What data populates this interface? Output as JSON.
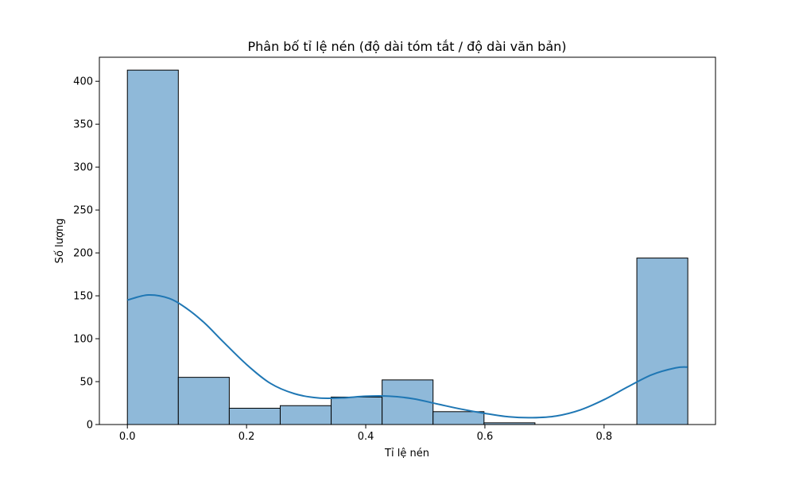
{
  "chart_data": {
    "type": "bar",
    "subtype": "histogram-with-kde",
    "title": "Phân bố tỉ lệ nén (độ dài tóm tắt / độ dài văn bản)",
    "xlabel": "Tỉ lệ nén",
    "ylabel": "Số lượng",
    "xlim": [
      -0.047,
      0.987
    ],
    "ylim": [
      0,
      428
    ],
    "xticks": [
      0.0,
      0.2,
      0.4,
      0.6,
      0.8
    ],
    "xtick_labels": [
      "0.0",
      "0.2",
      "0.4",
      "0.6",
      "0.8"
    ],
    "yticks": [
      0,
      50,
      100,
      150,
      200,
      250,
      300,
      350,
      400
    ],
    "ytick_labels": [
      "0",
      "50",
      "100",
      "150",
      "200",
      "250",
      "300",
      "350",
      "400"
    ],
    "bins": [
      {
        "x0": 0.0,
        "x1": 0.0855,
        "count": 413
      },
      {
        "x0": 0.0855,
        "x1": 0.171,
        "count": 55
      },
      {
        "x0": 0.171,
        "x1": 0.2565,
        "count": 19
      },
      {
        "x0": 0.2565,
        "x1": 0.342,
        "count": 22
      },
      {
        "x0": 0.342,
        "x1": 0.4275,
        "count": 32
      },
      {
        "x0": 0.4275,
        "x1": 0.513,
        "count": 52
      },
      {
        "x0": 0.513,
        "x1": 0.5985,
        "count": 15
      },
      {
        "x0": 0.5985,
        "x1": 0.684,
        "count": 2
      },
      {
        "x0": 0.684,
        "x1": 0.7695,
        "count": 0
      },
      {
        "x0": 0.7695,
        "x1": 0.855,
        "count": 0
      },
      {
        "x0": 0.855,
        "x1": 0.9405,
        "count": 194
      }
    ],
    "kde": {
      "x": [
        0.0,
        0.035,
        0.07,
        0.1,
        0.13,
        0.16,
        0.2,
        0.24,
        0.28,
        0.32,
        0.36,
        0.4,
        0.44,
        0.48,
        0.52,
        0.56,
        0.6,
        0.64,
        0.68,
        0.72,
        0.76,
        0.8,
        0.84,
        0.88,
        0.92,
        0.94
      ],
      "y": [
        145,
        151,
        147,
        135,
        118,
        97,
        70,
        48,
        36,
        31,
        31,
        33,
        33,
        30,
        24,
        18,
        13,
        9,
        8,
        10,
        17,
        29,
        44,
        58,
        66,
        67
      ]
    },
    "grid": false,
    "legend": "none",
    "colors": {
      "bar_fill": "#8fb9d9",
      "bar_edge": "#000000",
      "kde_line": "#1f77b4",
      "axes": "#000000"
    }
  }
}
